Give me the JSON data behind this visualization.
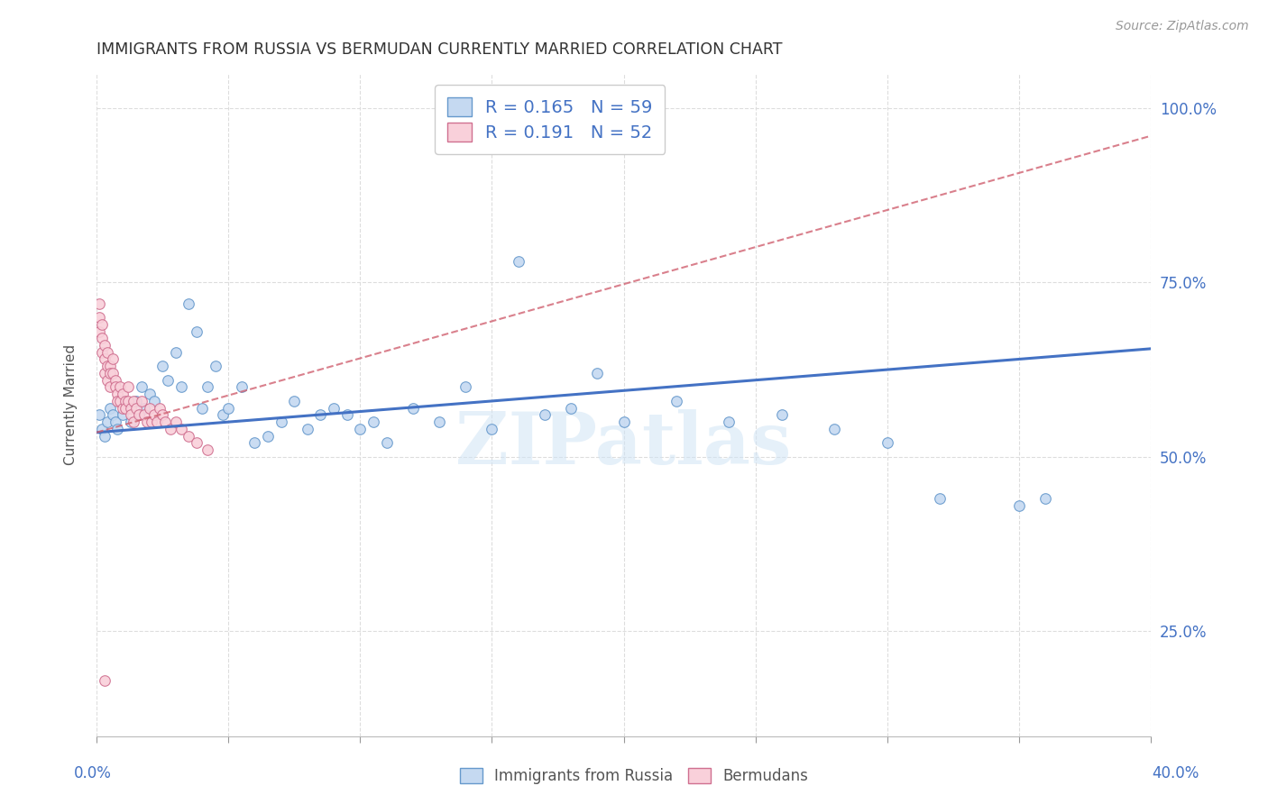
{
  "title": "IMMIGRANTS FROM RUSSIA VS BERMUDAN CURRENTLY MARRIED CORRELATION CHART",
  "source": "Source: ZipAtlas.com",
  "ylabel": "Currently Married",
  "xmin": 0.0,
  "xmax": 0.4,
  "ymin": 0.1,
  "ymax": 1.05,
  "legend_blue_label": "R = 0.165   N = 59",
  "legend_pink_label": "R = 0.191   N = 52",
  "blue_fill_color": "#c5d9f1",
  "pink_fill_color": "#f9d0da",
  "blue_edge_color": "#6699cc",
  "pink_edge_color": "#d07090",
  "blue_line_color": "#4472c4",
  "pink_line_color": "#d06070",
  "axis_label_color": "#4472c4",
  "watermark": "ZIPatlas",
  "blue_trend_x0": 0.0,
  "blue_trend_y0": 0.535,
  "blue_trend_x1": 0.4,
  "blue_trend_y1": 0.655,
  "pink_trend_x0": 0.0,
  "pink_trend_y0": 0.535,
  "pink_trend_x1": 0.4,
  "pink_trend_y1": 0.96,
  "blue_x": [
    0.001,
    0.002,
    0.003,
    0.004,
    0.005,
    0.006,
    0.007,
    0.008,
    0.01,
    0.01,
    0.012,
    0.013,
    0.015,
    0.016,
    0.017,
    0.018,
    0.02,
    0.022,
    0.025,
    0.027,
    0.03,
    0.032,
    0.035,
    0.038,
    0.04,
    0.042,
    0.045,
    0.048,
    0.05,
    0.055,
    0.06,
    0.065,
    0.07,
    0.075,
    0.08,
    0.085,
    0.09,
    0.095,
    0.1,
    0.105,
    0.11,
    0.12,
    0.13,
    0.14,
    0.15,
    0.16,
    0.17,
    0.18,
    0.19,
    0.2,
    0.21,
    0.22,
    0.24,
    0.26,
    0.28,
    0.3,
    0.32,
    0.35,
    0.36
  ],
  "blue_y": [
    0.56,
    0.54,
    0.53,
    0.55,
    0.57,
    0.56,
    0.55,
    0.54,
    0.56,
    0.58,
    0.57,
    0.55,
    0.58,
    0.56,
    0.6,
    0.57,
    0.59,
    0.58,
    0.63,
    0.61,
    0.65,
    0.6,
    0.72,
    0.68,
    0.57,
    0.6,
    0.63,
    0.56,
    0.57,
    0.6,
    0.52,
    0.53,
    0.55,
    0.58,
    0.54,
    0.56,
    0.57,
    0.56,
    0.54,
    0.55,
    0.52,
    0.57,
    0.55,
    0.6,
    0.54,
    0.78,
    0.56,
    0.57,
    0.62,
    0.55,
    0.98,
    0.58,
    0.55,
    0.56,
    0.54,
    0.52,
    0.44,
    0.43,
    0.44
  ],
  "pink_x": [
    0.001,
    0.001,
    0.001,
    0.002,
    0.002,
    0.002,
    0.003,
    0.003,
    0.003,
    0.004,
    0.004,
    0.004,
    0.005,
    0.005,
    0.005,
    0.006,
    0.006,
    0.007,
    0.007,
    0.008,
    0.008,
    0.009,
    0.009,
    0.01,
    0.01,
    0.011,
    0.011,
    0.012,
    0.012,
    0.013,
    0.013,
    0.014,
    0.014,
    0.015,
    0.016,
    0.017,
    0.018,
    0.019,
    0.02,
    0.021,
    0.022,
    0.023,
    0.024,
    0.025,
    0.026,
    0.028,
    0.03,
    0.032,
    0.035,
    0.038,
    0.042,
    0.003
  ],
  "pink_y": [
    0.68,
    0.7,
    0.72,
    0.67,
    0.69,
    0.65,
    0.66,
    0.64,
    0.62,
    0.65,
    0.63,
    0.61,
    0.63,
    0.62,
    0.6,
    0.64,
    0.62,
    0.61,
    0.6,
    0.59,
    0.58,
    0.6,
    0.58,
    0.59,
    0.57,
    0.58,
    0.57,
    0.6,
    0.58,
    0.57,
    0.56,
    0.58,
    0.55,
    0.57,
    0.56,
    0.58,
    0.56,
    0.55,
    0.57,
    0.55,
    0.56,
    0.55,
    0.57,
    0.56,
    0.55,
    0.54,
    0.55,
    0.54,
    0.53,
    0.52,
    0.51,
    0.18
  ]
}
